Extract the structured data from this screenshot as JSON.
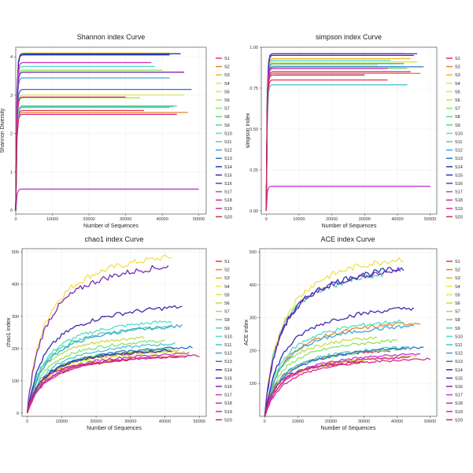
{
  "chart_data": [
    {
      "type": "line",
      "title": "Shannon index Curve",
      "xlabel": "Number of Sequences",
      "ylabel": "Shannon Diversity",
      "xlim": [
        0,
        52000
      ],
      "ylim": [
        -0.1,
        4.25
      ],
      "xticks": [
        0,
        10000,
        20000,
        30000,
        40000,
        50000
      ],
      "yticks": [
        0,
        1,
        2,
        3,
        4
      ],
      "ytick_labels": [
        "0",
        "1",
        "2",
        "3",
        "4"
      ],
      "grid": true,
      "legend_position": "right",
      "curve_shape": "plateau",
      "series": [
        {
          "name": "S1",
          "color": "#e8364a",
          "x_max": 35000,
          "y_final": 2.6
        },
        {
          "name": "S2",
          "color": "#e8842a",
          "x_max": 47000,
          "y_final": 2.55
        },
        {
          "name": "S3",
          "color": "#f0b429",
          "x_max": 36000,
          "y_final": 3.65
        },
        {
          "name": "S4",
          "color": "#f4e04d",
          "x_max": 42000,
          "y_final": 4.1
        },
        {
          "name": "S5",
          "color": "#d8e84a",
          "x_max": 46000,
          "y_final": 3.0
        },
        {
          "name": "S6",
          "color": "#bfe04a",
          "x_max": 34000,
          "y_final": 2.93
        },
        {
          "name": "S7",
          "color": "#8ee26a",
          "x_max": 40000,
          "y_final": 3.65
        },
        {
          "name": "S8",
          "color": "#62d86c",
          "x_max": 43000,
          "y_final": 2.7
        },
        {
          "name": "S9",
          "color": "#4cd6a3",
          "x_max": 42000,
          "y_final": 2.68
        },
        {
          "name": "S10",
          "color": "#4fe0c8",
          "x_max": 38000,
          "y_final": 3.75
        },
        {
          "name": "S11",
          "color": "#48c6d8",
          "x_max": 44000,
          "y_final": 2.72
        },
        {
          "name": "S12",
          "color": "#3aa6d8",
          "x_max": 42000,
          "y_final": 3.45
        },
        {
          "name": "S13",
          "color": "#2a76c8",
          "x_max": 48000,
          "y_final": 3.15
        },
        {
          "name": "S14",
          "color": "#1d3fb8",
          "x_max": 42000,
          "y_final": 4.05
        },
        {
          "name": "S15",
          "color": "#3a2ab0",
          "x_max": 45000,
          "y_final": 4.08
        },
        {
          "name": "S16",
          "color": "#7a2ab8",
          "x_max": 46000,
          "y_final": 3.6
        },
        {
          "name": "S17",
          "color": "#c23ad8",
          "x_max": 50000,
          "y_final": 0.55
        },
        {
          "name": "S18",
          "color": "#d42ab8",
          "x_max": 37000,
          "y_final": 3.85
        },
        {
          "name": "S19",
          "color": "#d82a90",
          "x_max": 44000,
          "y_final": 2.5
        },
        {
          "name": "S20",
          "color": "#c82a5a",
          "x_max": 30000,
          "y_final": 2.95
        }
      ]
    },
    {
      "type": "line",
      "title": "simpson index Curve",
      "xlabel": "Number of Sequences",
      "ylabel": "simpson index",
      "xlim": [
        -1500,
        52000
      ],
      "ylim": [
        -0.02,
        1.0
      ],
      "xticks": [
        0,
        10000,
        20000,
        30000,
        40000,
        50000
      ],
      "yticks": [
        0.0,
        0.25,
        0.5,
        0.75,
        1.0
      ],
      "ytick_labels": [
        "0.00",
        "0.25",
        "0.50",
        "0.75",
        "1.00"
      ],
      "grid": true,
      "legend_position": "right",
      "curve_shape": "plateau",
      "series": [
        {
          "name": "S1",
          "color": "#e8364a",
          "x_max": 37000,
          "y_final": 0.8
        },
        {
          "name": "S2",
          "color": "#e8842a",
          "x_max": 47000,
          "y_final": 0.84
        },
        {
          "name": "S3",
          "color": "#f0b429",
          "x_max": 44000,
          "y_final": 0.93
        },
        {
          "name": "S4",
          "color": "#f4e04d",
          "x_max": 42000,
          "y_final": 0.96
        },
        {
          "name": "S5",
          "color": "#d8e84a",
          "x_max": 46000,
          "y_final": 0.91
        },
        {
          "name": "S6",
          "color": "#bfe04a",
          "x_max": 34000,
          "y_final": 0.89
        },
        {
          "name": "S7",
          "color": "#8ee26a",
          "x_max": 40000,
          "y_final": 0.9
        },
        {
          "name": "S8",
          "color": "#62d86c",
          "x_max": 43000,
          "y_final": 0.87
        },
        {
          "name": "S9",
          "color": "#4cd6a3",
          "x_max": 42000,
          "y_final": 0.88
        },
        {
          "name": "S10",
          "color": "#4fe0c8",
          "x_max": 38000,
          "y_final": 0.92
        },
        {
          "name": "S11",
          "color": "#48c6d8",
          "x_max": 43000,
          "y_final": 0.77
        },
        {
          "name": "S12",
          "color": "#3aa6d8",
          "x_max": 42000,
          "y_final": 0.9
        },
        {
          "name": "S13",
          "color": "#2a76c8",
          "x_max": 48000,
          "y_final": 0.88
        },
        {
          "name": "S14",
          "color": "#1d3fb8",
          "x_max": 42000,
          "y_final": 0.96
        },
        {
          "name": "S15",
          "color": "#3a2ab0",
          "x_max": 45000,
          "y_final": 0.95
        },
        {
          "name": "S16",
          "color": "#7a2ab8",
          "x_max": 46000,
          "y_final": 0.96
        },
        {
          "name": "S17",
          "color": "#c23ad8",
          "x_max": 50000,
          "y_final": 0.15
        },
        {
          "name": "S18",
          "color": "#d42ab8",
          "x_max": 37000,
          "y_final": 0.87
        },
        {
          "name": "S19",
          "color": "#d82a90",
          "x_max": 44000,
          "y_final": 0.85
        },
        {
          "name": "S20",
          "color": "#c82a5a",
          "x_max": 30000,
          "y_final": 0.83
        }
      ]
    },
    {
      "type": "line",
      "title": "chao1 index Curve",
      "xlabel": "Number of Sequences",
      "ylabel": "chao1 index",
      "xlim": [
        -1500,
        52000
      ],
      "ylim": [
        -10,
        510
      ],
      "xticks": [
        0,
        10000,
        20000,
        30000,
        40000,
        50000
      ],
      "yticks": [
        0,
        100,
        200,
        300,
        400,
        500
      ],
      "ytick_labels": [
        "0",
        "100",
        "200",
        "300",
        "400",
        "500"
      ],
      "grid": true,
      "legend_position": "right",
      "curve_shape": "accumulating",
      "series": [
        {
          "name": "S1",
          "color": "#e8364a",
          "x_max": 38000,
          "y_final": 190
        },
        {
          "name": "S2",
          "color": "#e8842a",
          "x_max": 47000,
          "y_final": 180
        },
        {
          "name": "S3",
          "color": "#f0b429",
          "x_max": 44000,
          "y_final": 195
        },
        {
          "name": "S4",
          "color": "#f4e04d",
          "x_max": 42000,
          "y_final": 485
        },
        {
          "name": "S5",
          "color": "#d8e84a",
          "x_max": 46000,
          "y_final": 190
        },
        {
          "name": "S6",
          "color": "#bfe04a",
          "x_max": 34000,
          "y_final": 235
        },
        {
          "name": "S7",
          "color": "#8ee26a",
          "x_max": 40000,
          "y_final": 225
        },
        {
          "name": "S8",
          "color": "#62d86c",
          "x_max": 43000,
          "y_final": 200
        },
        {
          "name": "S9",
          "color": "#4cd6a3",
          "x_max": 42000,
          "y_final": 270
        },
        {
          "name": "S10",
          "color": "#4fe0c8",
          "x_max": 42000,
          "y_final": 285
        },
        {
          "name": "S11",
          "color": "#48c6d8",
          "x_max": 43000,
          "y_final": 215
        },
        {
          "name": "S12",
          "color": "#3aa6d8",
          "x_max": 45000,
          "y_final": 270
        },
        {
          "name": "S13",
          "color": "#2a76c8",
          "x_max": 48000,
          "y_final": 205
        },
        {
          "name": "S14",
          "color": "#1d3fb8",
          "x_max": 42000,
          "y_final": 195
        },
        {
          "name": "S15",
          "color": "#3a2ab0",
          "x_max": 45000,
          "y_final": 330
        },
        {
          "name": "S16",
          "color": "#7a2ab8",
          "x_max": 41000,
          "y_final": 455
        },
        {
          "name": "S17",
          "color": "#c23ad8",
          "x_max": 47000,
          "y_final": 185
        },
        {
          "name": "S18",
          "color": "#d42ab8",
          "x_max": 44000,
          "y_final": 175
        },
        {
          "name": "S19",
          "color": "#d82a90",
          "x_max": 50000,
          "y_final": 178
        },
        {
          "name": "S20",
          "color": "#c82a5a",
          "x_max": 30000,
          "y_final": 165
        }
      ]
    },
    {
      "type": "line",
      "title": "ACE index Curve",
      "xlabel": "Number of Sequences",
      "ylabel": "ACE index",
      "xlim": [
        -1500,
        52000
      ],
      "ylim": [
        0,
        510
      ],
      "xticks": [
        0,
        10000,
        20000,
        30000,
        40000,
        50000
      ],
      "yticks": [
        100,
        200,
        300,
        400,
        500
      ],
      "ytick_labels": [
        "100",
        "200",
        "300",
        "400",
        "500"
      ],
      "grid": true,
      "legend_position": "right",
      "curve_shape": "accumulating",
      "series": [
        {
          "name": "S1",
          "color": "#e8364a",
          "x_max": 38000,
          "y_final": 200
        },
        {
          "name": "S2",
          "color": "#e8842a",
          "x_max": 47000,
          "y_final": 285
        },
        {
          "name": "S3",
          "color": "#f0b429",
          "x_max": 44000,
          "y_final": 180
        },
        {
          "name": "S4",
          "color": "#f4e04d",
          "x_max": 42000,
          "y_final": 480
        },
        {
          "name": "S5",
          "color": "#d8e84a",
          "x_max": 46000,
          "y_final": 185
        },
        {
          "name": "S6",
          "color": "#bfe04a",
          "x_max": 34000,
          "y_final": 240
        },
        {
          "name": "S7",
          "color": "#8ee26a",
          "x_max": 40000,
          "y_final": 230
        },
        {
          "name": "S8",
          "color": "#62d86c",
          "x_max": 43000,
          "y_final": 205
        },
        {
          "name": "S9",
          "color": "#4cd6a3",
          "x_max": 36000,
          "y_final": 430
        },
        {
          "name": "S10",
          "color": "#4fe0c8",
          "x_max": 42000,
          "y_final": 290
        },
        {
          "name": "S11",
          "color": "#48c6d8",
          "x_max": 43000,
          "y_final": 210
        },
        {
          "name": "S12",
          "color": "#3aa6d8",
          "x_max": 45000,
          "y_final": 275
        },
        {
          "name": "S13",
          "color": "#2a76c8",
          "x_max": 48000,
          "y_final": 210
        },
        {
          "name": "S14",
          "color": "#1d3fb8",
          "x_max": 42000,
          "y_final": 450
        },
        {
          "name": "S15",
          "color": "#3a2ab0",
          "x_max": 45000,
          "y_final": 330
        },
        {
          "name": "S16",
          "color": "#7a2ab8",
          "x_max": 41000,
          "y_final": 445
        },
        {
          "name": "S17",
          "color": "#c23ad8",
          "x_max": 47000,
          "y_final": 190
        },
        {
          "name": "S18",
          "color": "#d42ab8",
          "x_max": 44000,
          "y_final": 180
        },
        {
          "name": "S19",
          "color": "#d82a90",
          "x_max": 50000,
          "y_final": 175
        },
        {
          "name": "S20",
          "color": "#c82a5a",
          "x_max": 30000,
          "y_final": 165
        }
      ]
    }
  ]
}
